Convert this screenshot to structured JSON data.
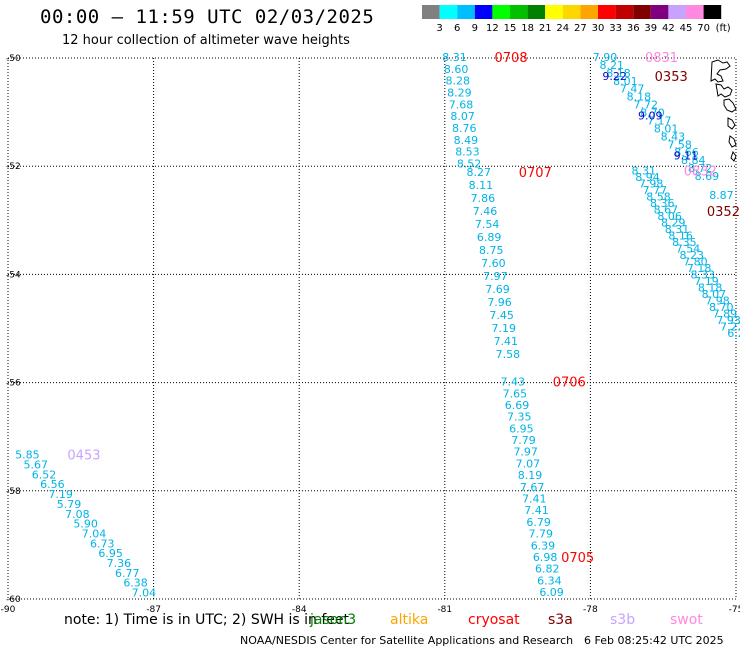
{
  "header": {
    "title": "00:00 – 11:59 UTC 02/03/2025",
    "subtitle": "12 hour collection of altimeter wave heights"
  },
  "colorbar": {
    "labels": [
      "3",
      "6",
      "9",
      "12",
      "15",
      "18",
      "21",
      "24",
      "27",
      "30",
      "33",
      "36",
      "39",
      "42",
      "45",
      "70"
    ],
    "units": "(ft)",
    "colors": [
      "#808080",
      "#00ffff",
      "#00bfff",
      "#0000ff",
      "#00ff00",
      "#00c000",
      "#008000",
      "#ffff00",
      "#ffd700",
      "#ffa500",
      "#ff0000",
      "#c00000",
      "#800000",
      "#800080",
      "#c8a2ff",
      "#ff88e0",
      "#000000"
    ]
  },
  "axes": {
    "lon_ticks": [
      "-90",
      "-87",
      "-84",
      "-81",
      "-78",
      "-75"
    ],
    "lat_ticks": [
      "-50",
      "-52",
      "-54",
      "-56",
      "-58",
      "-60"
    ]
  },
  "chart_data": {
    "type": "scatter",
    "title": "00:00 – 11:59 UTC 02/03/2025",
    "subtitle": "12 hour collection of altimeter wave heights",
    "xlabel": "",
    "ylabel": "",
    "xlim": [
      -90,
      -75
    ],
    "ylim": [
      -60,
      -50
    ],
    "grid": true,
    "tracks": [
      {
        "time": "0708",
        "time_color": "#ff0000",
        "start": [
          -80.8,
          -50.0
        ],
        "end": [
          -80.5,
          -51.97
        ],
        "values": [
          "8.31",
          "8.60",
          "8.28",
          "8.29",
          "7.68",
          "8.07",
          "8.76",
          "8.49",
          "8.53",
          "8.52"
        ]
      },
      {
        "time": "0707",
        "time_color": "#ff0000",
        "start": [
          -80.3,
          -52.13
        ],
        "end": [
          -79.7,
          -55.49
        ],
        "values": [
          "8.27",
          "8.11",
          "7.86",
          "7.46",
          "7.54",
          "6.89",
          "8.75",
          "7.60",
          "7.97",
          "7.69",
          "7.96",
          "7.45",
          "7.19",
          "7.41",
          "7.58"
        ]
      },
      {
        "time": "0706",
        "time_color": "#ff0000",
        "start": [
          -79.6,
          -56.0
        ],
        "end": [
          -78.8,
          -59.89
        ],
        "values": [
          "7.43",
          "7.65",
          "6.69",
          "7.35",
          "6.95",
          "7.79",
          "7.97",
          "7.07",
          "8.19",
          "7.67",
          "7.41",
          "7.41",
          "6.79",
          "7.79",
          "6.39",
          "6.98",
          "6.82",
          "6.34",
          "6.09"
        ],
        "time_row_index": 15,
        "time_label": "0705"
      },
      {
        "time": "0453",
        "time_color": "#c8a2ff",
        "start": [
          -89.6,
          -57.35
        ],
        "end": [
          -87.2,
          -59.9
        ],
        "values": [
          "5.85",
          "5.67",
          "6.52",
          "6.56",
          "7.19",
          "5.79",
          "7.08",
          "5.90",
          "7.04",
          "6.73",
          "6.95",
          "7.36",
          "6.77",
          "6.38",
          "7.04"
        ]
      },
      {
        "time": "0831",
        "time_color": "#ff88e0",
        "start": [
          -77.7,
          -50.0
        ],
        "end": [
          -75.6,
          -52.2
        ],
        "values": [
          "7.90",
          "8.21",
          "8.18",
          "8.01",
          "7.47",
          "8.18",
          "7.72",
          "8.70",
          "7.17",
          "8.01",
          "8.43",
          "7.58",
          "8.66",
          "8.84",
          "8.72",
          "8.69"
        ]
      },
      {
        "time": "0353",
        "time_color": "#800000",
        "start": [
          -77.5,
          -50.35
        ],
        "end": [
          -75.3,
          -52.55
        ],
        "values": [
          "9.22",
          "9.09",
          "9.11",
          "8.87"
        ]
      },
      {
        "time": "0832",
        "time_color": "#ff88e0",
        "start": [
          -76.9,
          -52.1
        ],
        "end": [
          -75.0,
          -55.1
        ],
        "values": [
          "8.31",
          "8.94",
          "7.98",
          "7.77",
          "8.58",
          "8.36",
          "8.67",
          "8.06",
          "8.29",
          "8.31",
          "8.16",
          "8.35",
          "7.54",
          "8.23",
          "7.80",
          "7.18",
          "8.33",
          "7.19",
          "8.18",
          "8.07",
          "7.98",
          "8.70",
          "7.89",
          "7.93",
          "7.22",
          "6.2"
        ]
      },
      {
        "time": "0352",
        "time_color": "#800000",
        "start": [
          -75.6,
          -52.85
        ],
        "end": [
          -75.6,
          -52.85
        ],
        "values": []
      }
    ]
  },
  "footer": {
    "note": "note:  1) Time is in UTC; 2) SWH is in feet",
    "satellites": [
      {
        "name": "jason3",
        "color": "#008000"
      },
      {
        "name": "altika",
        "color": "#ffa500"
      },
      {
        "name": "cryosat",
        "color": "#ff0000"
      },
      {
        "name": "s3a",
        "color": "#800000"
      },
      {
        "name": "s3b",
        "color": "#c8a2ff"
      },
      {
        "name": "swot",
        "color": "#ff88e0"
      }
    ],
    "credit": "NOAA/NESDIS Center for Satellite Applications and Research",
    "generated": "6 Feb 08:25:42 UTC 2025"
  }
}
